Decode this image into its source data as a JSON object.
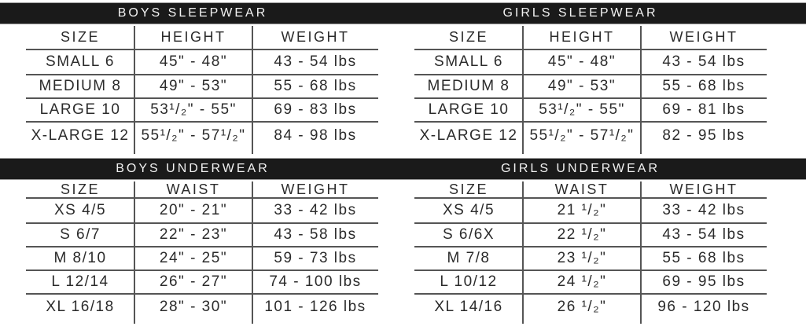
{
  "colors": {
    "bar_bg": "#1a1a1a",
    "bar_text": "#f2f2f2",
    "text": "#2b2b2b",
    "line": "#555555"
  },
  "tables": [
    {
      "title": "BOYS SLEEPWEAR",
      "columns": [
        "SIZE",
        "HEIGHT",
        "WEIGHT"
      ],
      "rows": [
        [
          "SMALL 6",
          "45\" - 48\"",
          "43 - 54 lbs"
        ],
        [
          "MEDIUM 8",
          "49\" - 53\"",
          "55 - 68 lbs"
        ],
        [
          "LARGE 10",
          "53¹/₂\" - 55\"",
          "69 - 83 lbs"
        ],
        [
          "X-LARGE 12",
          "55¹/₂\" - 57¹/₂\"",
          "84 - 98 lbs"
        ]
      ]
    },
    {
      "title": "GIRLS SLEEPWEAR",
      "columns": [
        "SIZE",
        "HEIGHT",
        "WEIGHT"
      ],
      "rows": [
        [
          "SMALL 6",
          "45\" - 48\"",
          "43 - 54 lbs"
        ],
        [
          "MEDIUM 8",
          "49\" - 53\"",
          "55 - 68 lbs"
        ],
        [
          "LARGE 10",
          "53¹/₂\" - 55\"",
          "69 - 81 lbs"
        ],
        [
          "X-LARGE 12",
          "55¹/₂\" - 57¹/₂\"",
          "82 - 95 lbs"
        ]
      ]
    },
    {
      "title": "BOYS UNDERWEAR",
      "columns": [
        "SIZE",
        "WAIST",
        "WEIGHT"
      ],
      "rows": [
        [
          "XS 4/5",
          "20\" - 21\"",
          "33 - 42 lbs"
        ],
        [
          "S 6/7",
          "22\" - 23\"",
          "43 - 58 lbs"
        ],
        [
          "M 8/10",
          "24\" - 25\"",
          "59 - 73 lbs"
        ],
        [
          "L 12/14",
          "26\" - 27\"",
          "74 - 100 lbs"
        ],
        [
          "XL 16/18",
          "28\" - 30\"",
          "101 - 126 lbs"
        ]
      ]
    },
    {
      "title": "GIRLS UNDERWEAR",
      "columns": [
        "SIZE",
        "WAIST",
        "WEIGHT"
      ],
      "rows": [
        [
          "XS 4/5",
          "21 ¹/₂\"",
          "33 - 42 lbs"
        ],
        [
          "S 6/6X",
          "22 ¹/₂\"",
          "43 - 54 lbs"
        ],
        [
          "M 7/8",
          "23 ¹/₂\"",
          "55 - 68 lbs"
        ],
        [
          "L 10/12",
          "24 ¹/₂\"",
          "69 - 95 lbs"
        ],
        [
          "XL 14/16",
          "26 ¹/₂\"",
          "96 - 120 lbs"
        ]
      ]
    }
  ]
}
